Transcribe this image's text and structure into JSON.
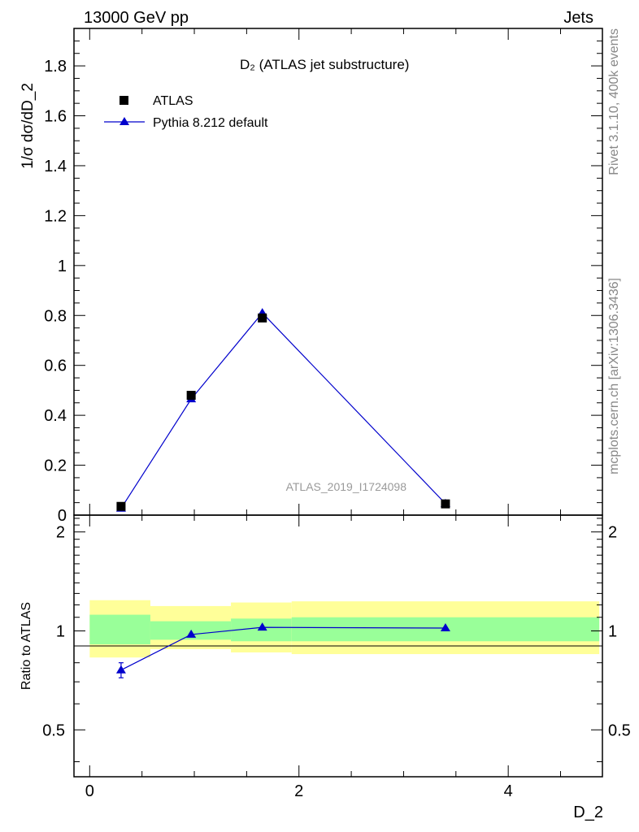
{
  "header": {
    "energy_label": "13000 GeV pp",
    "category_label": "Jets"
  },
  "side_labels": {
    "rivet": "Rivet 3.1.10,  400k events",
    "mcplots": "mcplots.cern.ch [arXiv:1306.3436]"
  },
  "watermark": "ATLAS_2019_I1724098",
  "colors": {
    "data": "#000000",
    "mc": "#0000cc",
    "band_inner": "#99ff99",
    "band_outer": "#ffff99"
  },
  "chart_data": {
    "type": "scatter",
    "title": "D₂ (ATLAS jet substructure)",
    "xlabel": "D_2",
    "ylabel": "1/σ dσ/dD_2",
    "ratio_ylabel": "Ratio to ATLAS",
    "xlim": [
      -0.15,
      4.9
    ],
    "ylim": [
      0,
      1.95
    ],
    "ratio_ylim": [
      0.36,
      2.25
    ],
    "x_ticks": [
      "0",
      "2",
      "4"
    ],
    "x_tick_values": [
      0,
      2,
      4
    ],
    "y_ticks": [
      "0",
      "0.2",
      "0.4",
      "0.6",
      "0.8",
      "1",
      "1.2",
      "1.4",
      "1.6",
      "1.8"
    ],
    "y_tick_values": [
      0,
      0.2,
      0.4,
      0.6,
      0.8,
      1.0,
      1.2,
      1.4,
      1.6,
      1.8
    ],
    "ratio_ticks": [
      "0.5",
      "1",
      "2"
    ],
    "ratio_tick_values": [
      0.5,
      1,
      2
    ],
    "legend": [
      "ATLAS",
      "Pythia 8.212 default"
    ],
    "series": [
      {
        "name": "ATLAS",
        "x": [
          0.3,
          0.97,
          1.65,
          3.4
        ],
        "y": [
          0.035,
          0.48,
          0.79,
          0.045
        ]
      },
      {
        "name": "Pythia 8.212 default",
        "x": [
          0.3,
          0.97,
          1.65,
          3.4
        ],
        "y": [
          0.027,
          0.465,
          0.81,
          0.046
        ],
        "ratio": [
          0.76,
          0.975,
          1.025,
          1.02
        ],
        "ratio_err": [
          0.04,
          0.008,
          0.006,
          0.006
        ]
      }
    ],
    "bands": [
      {
        "x0": 0.0,
        "x1": 0.58,
        "inner": [
          0.91,
          1.12
        ],
        "outer": [
          0.83,
          1.24
        ]
      },
      {
        "x0": 0.58,
        "x1": 1.35,
        "inner": [
          0.94,
          1.07
        ],
        "outer": [
          0.88,
          1.19
        ]
      },
      {
        "x0": 1.35,
        "x1": 1.93,
        "inner": [
          0.93,
          1.09
        ],
        "outer": [
          0.86,
          1.22
        ]
      },
      {
        "x0": 1.93,
        "x1": 4.87,
        "inner": [
          0.93,
          1.1
        ],
        "outer": [
          0.85,
          1.23
        ]
      }
    ]
  }
}
